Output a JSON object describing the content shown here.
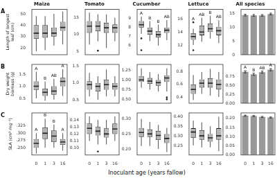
{
  "xlabel": "Inoculant age (years fallow)",
  "chart_data": [
    {
      "type": "box",
      "title": "Maize",
      "ylabel": "Length of longest leaf (cm)",
      "panel_label": "A",
      "categories": [
        "0",
        "1",
        "3",
        "16"
      ],
      "color": "#b3b3b3",
      "tick_labels": "y",
      "ylim": [
        14,
        54
      ],
      "yticks": [
        20,
        30,
        40,
        50
      ],
      "values": [
        {
          "min": 17,
          "q1": 28,
          "median": 33,
          "q3": 40,
          "max": 48,
          "outliers": []
        },
        {
          "min": 18,
          "q1": 29,
          "median": 33,
          "q3": 40,
          "max": 48,
          "outliers": []
        },
        {
          "min": 22,
          "q1": 30,
          "median": 33,
          "q3": 38,
          "max": 50,
          "outliers": []
        },
        {
          "min": 23,
          "q1": 35,
          "median": 38,
          "q3": 43,
          "max": 52,
          "outliers": []
        }
      ]
    },
    {
      "type": "box",
      "title": "Tomato",
      "categories": [
        "0",
        "1",
        "3",
        "16"
      ],
      "color": "#b3b3b3",
      "tick_labels": "y",
      "ylim": [
        4,
        17.5
      ],
      "yticks": [
        5,
        10,
        15
      ],
      "values": [
        {
          "min": 7,
          "q1": 10.5,
          "median": 12.5,
          "q3": 14,
          "max": 16.5,
          "outliers": []
        },
        {
          "min": 8,
          "q1": 11,
          "median": 12.5,
          "q3": 14,
          "max": 16,
          "outliers": [
            5.2
          ]
        },
        {
          "min": 6,
          "q1": 10.5,
          "median": 12,
          "q3": 13.5,
          "max": 16,
          "outliers": []
        },
        {
          "min": 8,
          "q1": 10.5,
          "median": 12,
          "q3": 13,
          "max": 15,
          "outliers": []
        }
      ]
    },
    {
      "type": "box",
      "title": "Cucumber",
      "categories": [
        "0",
        "1",
        "3",
        "16"
      ],
      "color": "#b3b3b3",
      "tick_labels": "y",
      "ylim": [
        5,
        10
      ],
      "yticks": [
        6,
        7,
        8,
        9
      ],
      "annotations": [
        "A",
        "B",
        "B",
        "AB"
      ],
      "values": [
        {
          "min": 7.3,
          "q1": 8,
          "median": 8.3,
          "q3": 8.7,
          "max": 9.2,
          "outliers": [
            6.8,
            5.5
          ]
        },
        {
          "min": 6.5,
          "q1": 7.2,
          "median": 7.6,
          "q3": 8,
          "max": 8.7,
          "outliers": []
        },
        {
          "min": 6,
          "q1": 6.9,
          "median": 7.2,
          "q3": 7.6,
          "max": 8.3,
          "outliers": []
        },
        {
          "min": 6.6,
          "q1": 7.4,
          "median": 7.7,
          "q3": 8,
          "max": 8.8,
          "outliers": []
        }
      ]
    },
    {
      "type": "box",
      "title": "Lettuce",
      "categories": [
        "0",
        "1",
        "3",
        "16"
      ],
      "color": "#b3b3b3",
      "tick_labels": "y",
      "ylim": [
        10.5,
        17.5
      ],
      "yticks": [
        12,
        14,
        16
      ],
      "annotations": [
        "A",
        "AB",
        "B",
        "AB"
      ],
      "values": [
        {
          "min": 12,
          "q1": 12.8,
          "median": 13.3,
          "q3": 13.8,
          "max": 14.5,
          "outliers": [
            15.5,
            11.2
          ]
        },
        {
          "min": 12.5,
          "q1": 13.5,
          "median": 14,
          "q3": 15,
          "max": 16.2,
          "outliers": []
        },
        {
          "min": 13,
          "q1": 14,
          "median": 14.5,
          "q3": 15.3,
          "max": 16.5,
          "outliers": []
        },
        {
          "min": 12.3,
          "q1": 13.5,
          "median": 14.2,
          "q3": 14.8,
          "max": 15.8,
          "outliers": []
        }
      ]
    },
    {
      "type": "bar",
      "title": "All species",
      "categories": [
        "0",
        "1",
        "3",
        "16"
      ],
      "color": "#999999",
      "tick_labels": "y",
      "ylim": [
        0,
        16.5
      ],
      "yticks": [
        0,
        5,
        10,
        15
      ],
      "values": [
        14.4,
        14.3,
        14.3,
        14.8
      ],
      "errors": [
        0.3,
        0.3,
        0.3,
        0.3
      ]
    },
    {
      "type": "box",
      "ylabel": "Dry weight biomass (g)",
      "panel_label": "B",
      "categories": [
        "0",
        "1",
        "3",
        "16"
      ],
      "color": "#b3b3b3",
      "tick_labels": "y",
      "ylim": [
        0.3,
        1.9
      ],
      "yticks": [
        0.5,
        {
          "value": 1,
          "label": "1.0"
        },
        1.5
      ],
      "annotations": [
        "A",
        "B",
        "AB",
        "A"
      ],
      "values": [
        {
          "min": 0.5,
          "q1": 0.85,
          "median": 1.0,
          "q3": 1.2,
          "max": 1.6,
          "outliers": []
        },
        {
          "min": 0.4,
          "q1": 0.6,
          "median": 0.75,
          "q3": 0.9,
          "max": 1.2,
          "outliers": []
        },
        {
          "min": 0.45,
          "q1": 0.65,
          "median": 0.8,
          "q3": 1.0,
          "max": 1.3,
          "outliers": []
        },
        {
          "min": 0.6,
          "q1": 1.0,
          "median": 1.2,
          "q3": 1.35,
          "max": 1.7,
          "outliers": []
        }
      ]
    },
    {
      "type": "box",
      "categories": [
        "0",
        "1",
        "3",
        "16"
      ],
      "color": "#b3b3b3",
      "tick_labels": "y",
      "ylim": [
        0.4,
        1.55
      ],
      "yticks": [
        0.5,
        {
          "value": 1,
          "label": "1.0"
        },
        1.5
      ],
      "values": [
        {
          "min": 0.6,
          "q1": 0.8,
          "median": 0.95,
          "q3": 1.05,
          "max": 1.3,
          "outliers": []
        },
        {
          "min": 0.5,
          "q1": 0.75,
          "median": 0.9,
          "q3": 1.0,
          "max": 1.2,
          "outliers": []
        },
        {
          "min": 0.6,
          "q1": 0.8,
          "median": 0.95,
          "q3": 1.1,
          "max": 1.4,
          "outliers": []
        },
        {
          "min": 0.6,
          "q1": 0.8,
          "median": 0.9,
          "q3": 1.0,
          "max": 1.2,
          "outliers": []
        }
      ]
    },
    {
      "type": "box",
      "categories": [
        "0",
        "1",
        "3",
        "16"
      ],
      "color": "#b3b3b3",
      "tick_labels": "y",
      "ylim": [
        0.4,
        1.4
      ],
      "yticks": [
        {
          "value": 0.5,
          "label": "0.50"
        },
        0.75,
        {
          "value": 1,
          "label": "1.00"
        },
        1.25
      ],
      "values": [
        {
          "min": 0.8,
          "q1": 0.95,
          "median": 1.0,
          "q3": 1.1,
          "max": 1.3,
          "outliers": []
        },
        {
          "min": 0.75,
          "q1": 0.9,
          "median": 0.97,
          "q3": 1.05,
          "max": 1.2,
          "outliers": []
        },
        {
          "min": 0.7,
          "q1": 0.85,
          "median": 0.93,
          "q3": 1.0,
          "max": 1.15,
          "outliers": []
        },
        {
          "min": 0.7,
          "q1": 0.95,
          "median": 1.05,
          "q3": 1.12,
          "max": 1.3,
          "outliers": [
            0.55,
            0.5
          ]
        }
      ]
    },
    {
      "type": "box",
      "categories": [
        "0",
        "1",
        "3",
        "16"
      ],
      "color": "#b3b3b3",
      "tick_labels": "y",
      "ylim": [
        0.3,
        0.92
      ],
      "yticks": [
        0.4,
        0.6,
        0.8
      ],
      "values": [
        {
          "min": 0.35,
          "q1": 0.45,
          "median": 0.52,
          "q3": 0.6,
          "max": 0.75,
          "outliers": []
        },
        {
          "min": 0.45,
          "q1": 0.55,
          "median": 0.62,
          "q3": 0.68,
          "max": 0.8,
          "outliers": []
        },
        {
          "min": 0.42,
          "q1": 0.55,
          "median": 0.62,
          "q3": 0.7,
          "max": 0.85,
          "outliers": []
        },
        {
          "min": 0.4,
          "q1": 0.52,
          "median": 0.6,
          "q3": 0.68,
          "max": 0.8,
          "outliers": []
        }
      ]
    },
    {
      "type": "bar",
      "categories": [
        "0",
        "1",
        "3",
        "16"
      ],
      "color": "#999999",
      "tick_labels": "y",
      "ylim": [
        0,
        1.1
      ],
      "yticks": [
        {
          "value": 0,
          "label": "0.00"
        },
        0.25,
        {
          "value": 0.5,
          "label": "0.50"
        },
        0.75
      ],
      "annotations": [
        "A",
        "B",
        "AB",
        "A"
      ],
      "values": [
        0.89,
        0.82,
        0.88,
        0.95
      ],
      "errors": [
        0.03,
        0.03,
        0.03,
        0.03
      ]
    },
    {
      "type": "box",
      "ylabel": "SLA (cm² mg⁻¹)",
      "panel_label": "C",
      "categories": [
        "0",
        "1",
        "3",
        "16"
      ],
      "color": "#b3b3b3",
      "ylim": [
        0.225,
        0.37
      ],
      "yticks": [
        {
          "value": 0.25,
          "label": "0.250"
        },
        0.275,
        {
          "value": 0.3,
          "label": "0.300"
        },
        0.325
      ],
      "annotations": [
        "A",
        "B",
        "B",
        "A"
      ],
      "values": [
        {
          "min": 0.23,
          "q1": 0.25,
          "median": 0.265,
          "q3": 0.28,
          "max": 0.3,
          "outliers": []
        },
        {
          "min": 0.25,
          "q1": 0.28,
          "median": 0.3,
          "q3": 0.32,
          "max": 0.35,
          "outliers": []
        },
        {
          "min": 0.25,
          "q1": 0.27,
          "median": 0.29,
          "q3": 0.31,
          "max": 0.33,
          "outliers": []
        },
        {
          "min": 0.24,
          "q1": 0.26,
          "median": 0.27,
          "q3": 0.28,
          "max": 0.3,
          "outliers": []
        }
      ]
    },
    {
      "type": "box",
      "categories": [
        "0",
        "1",
        "3",
        "16"
      ],
      "color": "#b3b3b3",
      "ylim": [
        0.09,
        0.15
      ],
      "yticks": [
        {
          "value": 0.1,
          "label": "0.10"
        },
        0.11,
        0.12,
        0.13,
        0.14
      ],
      "values": [
        {
          "min": 0.11,
          "q1": 0.12,
          "median": 0.128,
          "q3": 0.135,
          "max": 0.145,
          "outliers": []
        },
        {
          "min": 0.105,
          "q1": 0.118,
          "median": 0.124,
          "q3": 0.13,
          "max": 0.14,
          "outliers": [
            0.095
          ]
        },
        {
          "min": 0.105,
          "q1": 0.115,
          "median": 0.12,
          "q3": 0.128,
          "max": 0.14,
          "outliers": []
        },
        {
          "min": 0.11,
          "q1": 0.12,
          "median": 0.127,
          "q3": 0.135,
          "max": 0.145,
          "outliers": []
        }
      ]
    },
    {
      "type": "box",
      "categories": [
        "0",
        "1",
        "3",
        "16"
      ],
      "color": "#b3b3b3",
      "ylim": [
        0.18,
        0.32
      ],
      "yticks": [
        {
          "value": 0.2,
          "label": "0.20"
        },
        0.25,
        {
          "value": 0.3,
          "label": "0.30"
        }
      ],
      "values": [
        {
          "min": 0.21,
          "q1": 0.24,
          "median": 0.255,
          "q3": 0.27,
          "max": 0.3,
          "outliers": []
        },
        {
          "min": 0.21,
          "q1": 0.24,
          "median": 0.25,
          "q3": 0.265,
          "max": 0.29,
          "outliers": []
        },
        {
          "min": 0.2,
          "q1": 0.23,
          "median": 0.245,
          "q3": 0.26,
          "max": 0.28,
          "outliers": []
        },
        {
          "min": 0.19,
          "q1": 0.22,
          "median": 0.235,
          "q3": 0.25,
          "max": 0.27,
          "outliers": []
        }
      ]
    },
    {
      "type": "box",
      "categories": [
        "0",
        "1",
        "3",
        "16"
      ],
      "color": "#b3b3b3",
      "ylim": [
        0.2,
        0.42
      ],
      "yticks": [
        0.25,
        {
          "value": 0.3,
          "label": "0.30"
        },
        0.35,
        {
          "value": 0.4,
          "label": "0.40"
        }
      ],
      "values": [
        {
          "min": 0.25,
          "q1": 0.29,
          "median": 0.32,
          "q3": 0.34,
          "max": 0.38,
          "outliers": []
        },
        {
          "min": 0.24,
          "q1": 0.28,
          "median": 0.3,
          "q3": 0.33,
          "max": 0.37,
          "outliers": []
        },
        {
          "min": 0.24,
          "q1": 0.27,
          "median": 0.29,
          "q3": 0.31,
          "max": 0.35,
          "outliers": []
        },
        {
          "min": 0.22,
          "q1": 0.28,
          "median": 0.3,
          "q3": 0.34,
          "max": 0.4,
          "outliers": []
        }
      ]
    },
    {
      "type": "bar",
      "categories": [
        "0",
        "1",
        "3",
        "16"
      ],
      "color": "#999999",
      "ylim": [
        0,
        0.23
      ],
      "yticks": [
        {
          "value": 0,
          "label": "0.00"
        },
        0.05,
        {
          "value": 0.1,
          "label": "0.10"
        },
        0.15,
        {
          "value": 0.2,
          "label": "0.20"
        }
      ],
      "values": [
        0.215,
        0.213,
        0.208,
        0.205
      ],
      "errors": [
        0.003,
        0.003,
        0.003,
        0.003
      ]
    }
  ]
}
